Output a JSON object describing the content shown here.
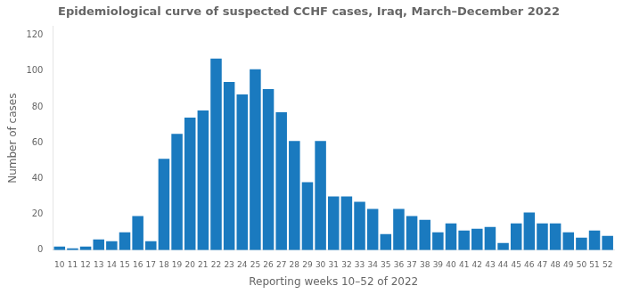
{
  "chart_data": {
    "type": "bar",
    "title": "Epidemiological curve of suspected CCHF cases, Iraq, March–December 2022",
    "xlabel": "Reporting weeks 10–52 of 2022",
    "ylabel": "Number of cases",
    "color": "#1a7abf",
    "categories": [
      "10",
      "11",
      "12",
      "13",
      "14",
      "15",
      "16",
      "17",
      "18",
      "19",
      "20",
      "21",
      "22",
      "23",
      "24",
      "25",
      "26",
      "27",
      "28",
      "29",
      "30",
      "31",
      "32",
      "33",
      "34",
      "35",
      "36",
      "37",
      "38",
      "39",
      "40",
      "41",
      "42",
      "43",
      "44",
      "45",
      "46",
      "47",
      "48",
      "49",
      "50",
      "51",
      "52"
    ],
    "values": [
      2,
      1,
      2,
      6,
      5,
      10,
      19,
      5,
      51,
      65,
      74,
      78,
      107,
      94,
      87,
      101,
      90,
      77,
      61,
      38,
      61,
      30,
      30,
      27,
      23,
      9,
      23,
      19,
      17,
      10,
      15,
      11,
      12,
      13,
      4,
      15,
      21,
      15,
      15,
      10,
      7,
      11,
      8
    ],
    "ylim": [
      0,
      125
    ],
    "yticks": [
      0,
      20,
      40,
      60,
      80,
      100,
      120
    ],
    "grid": false
  }
}
